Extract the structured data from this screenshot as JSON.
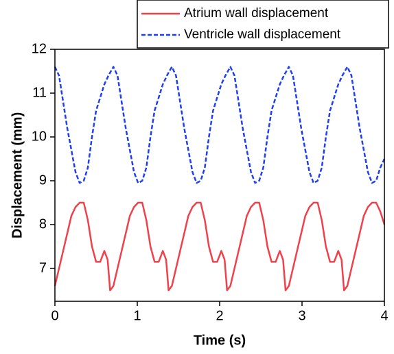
{
  "chart_data": {
    "type": "line",
    "xlabel": "Time (s)",
    "ylabel": "Displacement (mm)",
    "xlim": [
      0,
      4
    ],
    "xticks": [
      0,
      1,
      2,
      3,
      4
    ],
    "ylim": [
      6.25,
      12
    ],
    "yticks": [
      7,
      8,
      9,
      10,
      11,
      12
    ],
    "legend": "upper right",
    "series": [
      {
        "name": "Atrium wall displacement",
        "color": "#f0414b",
        "dash": "solid",
        "x": [
          0,
          0.05,
          0.1,
          0.15,
          0.2,
          0.25,
          0.3,
          0.35,
          0.4,
          0.45,
          0.5,
          0.55,
          0.6,
          0.64,
          0.67,
          0.71,
          0.76,
          0.81,
          0.86,
          0.91,
          0.96,
          1.01,
          1.06,
          1.11,
          1.16,
          1.21,
          1.26,
          1.31,
          1.35,
          1.38,
          1.42,
          1.47,
          1.52,
          1.57,
          1.62,
          1.67,
          1.72,
          1.77,
          1.82,
          1.87,
          1.92,
          1.97,
          2.02,
          2.06,
          2.09,
          2.13,
          2.18,
          2.23,
          2.28,
          2.33,
          2.38,
          2.43,
          2.48,
          2.53,
          2.58,
          2.63,
          2.68,
          2.73,
          2.77,
          2.8,
          2.84,
          2.89,
          2.94,
          2.99,
          3.04,
          3.09,
          3.14,
          3.19,
          3.24,
          3.29,
          3.34,
          3.39,
          3.44,
          3.48,
          3.51,
          3.55,
          3.6,
          3.65,
          3.7,
          3.75,
          3.8,
          3.85,
          3.9,
          3.95,
          4.0
        ],
        "values": [
          6.6,
          7.0,
          7.4,
          7.8,
          8.2,
          8.4,
          8.5,
          8.5,
          8.1,
          7.5,
          7.15,
          7.15,
          7.4,
          7.2,
          6.5,
          6.6,
          7.0,
          7.4,
          7.8,
          8.2,
          8.4,
          8.5,
          8.5,
          8.1,
          7.5,
          7.15,
          7.15,
          7.4,
          7.2,
          6.5,
          6.6,
          7.0,
          7.4,
          7.8,
          8.2,
          8.4,
          8.5,
          8.5,
          8.1,
          7.5,
          7.15,
          7.15,
          7.4,
          7.2,
          6.5,
          6.6,
          7.0,
          7.4,
          7.8,
          8.2,
          8.4,
          8.5,
          8.5,
          8.1,
          7.5,
          7.15,
          7.15,
          7.4,
          7.2,
          6.5,
          6.6,
          7.0,
          7.4,
          7.8,
          8.2,
          8.4,
          8.5,
          8.5,
          8.1,
          7.5,
          7.15,
          7.15,
          7.4,
          7.2,
          6.5,
          6.6,
          7.0,
          7.4,
          7.8,
          8.2,
          8.4,
          8.5,
          8.5,
          8.3,
          8.0
        ]
      },
      {
        "name": "Ventricle wall displacement",
        "color": "#1f3ff0",
        "dash": "dashed",
        "x": [
          0,
          0.05,
          0.1,
          0.15,
          0.2,
          0.25,
          0.3,
          0.35,
          0.4,
          0.45,
          0.5,
          0.55,
          0.6,
          0.65,
          0.71,
          0.76,
          0.81,
          0.86,
          0.91,
          0.96,
          1.01,
          1.06,
          1.11,
          1.16,
          1.21,
          1.26,
          1.31,
          1.36,
          1.42,
          1.47,
          1.52,
          1.57,
          1.62,
          1.67,
          1.72,
          1.77,
          1.82,
          1.87,
          1.92,
          1.97,
          2.02,
          2.07,
          2.13,
          2.18,
          2.23,
          2.28,
          2.33,
          2.38,
          2.43,
          2.48,
          2.53,
          2.58,
          2.63,
          2.68,
          2.73,
          2.78,
          2.84,
          2.89,
          2.94,
          2.99,
          3.04,
          3.09,
          3.14,
          3.19,
          3.24,
          3.29,
          3.34,
          3.39,
          3.44,
          3.49,
          3.55,
          3.6,
          3.65,
          3.7,
          3.75,
          3.8,
          3.85,
          3.9,
          3.95,
          4.0
        ],
        "values": [
          11.6,
          11.4,
          10.8,
          10.2,
          9.7,
          9.2,
          8.95,
          9.0,
          9.3,
          10.0,
          10.6,
          10.9,
          11.2,
          11.4,
          11.6,
          11.4,
          10.8,
          10.2,
          9.7,
          9.2,
          8.95,
          9.0,
          9.3,
          10.0,
          10.6,
          10.9,
          11.2,
          11.4,
          11.6,
          11.4,
          10.8,
          10.2,
          9.7,
          9.2,
          8.95,
          9.0,
          9.3,
          10.0,
          10.6,
          10.9,
          11.2,
          11.4,
          11.6,
          11.4,
          10.8,
          10.2,
          9.7,
          9.2,
          8.95,
          9.0,
          9.3,
          10.0,
          10.6,
          10.9,
          11.2,
          11.4,
          11.6,
          11.4,
          10.8,
          10.2,
          9.7,
          9.2,
          8.95,
          9.0,
          9.3,
          10.0,
          10.6,
          10.9,
          11.2,
          11.4,
          11.6,
          11.4,
          10.8,
          10.2,
          9.7,
          9.2,
          8.95,
          9.0,
          9.3,
          9.5
        ]
      }
    ]
  }
}
